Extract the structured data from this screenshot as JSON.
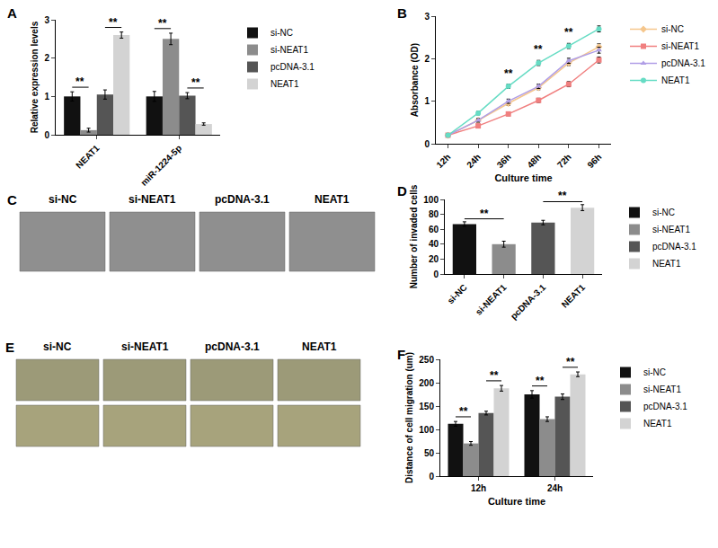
{
  "chart_data": [
    {
      "type": "bar",
      "panel_label": "A",
      "y_label": "Relative expression levels",
      "categories": [
        "NEAT1",
        "miR-1224-5p"
      ],
      "series": [
        {
          "name": "si-NC",
          "color": "#111111",
          "values": [
            1.0,
            1.0
          ],
          "errors": [
            0.12,
            0.13
          ]
        },
        {
          "name": "si-NEAT1",
          "color": "#8c8c8c",
          "values": [
            0.12,
            2.5
          ],
          "errors": [
            0.05,
            0.15
          ]
        },
        {
          "name": "pcDNA-3.1",
          "color": "#555555",
          "values": [
            1.05,
            1.02
          ],
          "errors": [
            0.12,
            0.08
          ]
        },
        {
          "name": "NEAT1",
          "color": "#d3d3d3",
          "values": [
            2.6,
            0.28
          ],
          "errors": [
            0.08,
            0.03
          ]
        }
      ],
      "ylim": [
        0,
        3
      ],
      "yticks": [
        0,
        1,
        2,
        3
      ],
      "grid": false,
      "legend": "right",
      "annotations": [
        {
          "text": "**",
          "category": "NEAT1",
          "between": [
            "si-NC",
            "si-NEAT1"
          ]
        },
        {
          "text": "**",
          "category": "NEAT1",
          "between": [
            "pcDNA-3.1",
            "NEAT1"
          ]
        },
        {
          "text": "**",
          "category": "miR-1224-5p",
          "between": [
            "si-NC",
            "si-NEAT1"
          ]
        },
        {
          "text": "**",
          "category": "miR-1224-5p",
          "between": [
            "pcDNA-3.1",
            "NEAT1"
          ]
        }
      ]
    },
    {
      "type": "line",
      "panel_label": "B",
      "x_label": "Culture time",
      "y_label": "Absorbance (OD)",
      "categories": [
        "12h",
        "24h",
        "36h",
        "48h",
        "72h",
        "96h"
      ],
      "series": [
        {
          "name": "si-NC",
          "color": "#f5c68c",
          "marker": "diamond",
          "values": [
            0.2,
            0.55,
            0.95,
            1.32,
            1.9,
            2.28
          ],
          "errors": [
            0.03,
            0.04,
            0.05,
            0.05,
            0.06,
            0.07
          ]
        },
        {
          "name": "si-NEAT1",
          "color": "#f07f7f",
          "marker": "square",
          "values": [
            0.2,
            0.42,
            0.7,
            1.02,
            1.4,
            1.97
          ],
          "errors": [
            0.03,
            0.04,
            0.04,
            0.05,
            0.06,
            0.07
          ]
        },
        {
          "name": "pcDNA-3.1",
          "color": "#b09ee6",
          "marker": "triangle-up",
          "values": [
            0.2,
            0.55,
            1.0,
            1.35,
            1.95,
            2.2
          ],
          "errors": [
            0.03,
            0.04,
            0.05,
            0.05,
            0.06,
            0.07
          ]
        },
        {
          "name": "NEAT1",
          "color": "#66dcc4",
          "marker": "circle",
          "values": [
            0.2,
            0.72,
            1.35,
            1.9,
            2.3,
            2.7
          ],
          "errors": [
            0.03,
            0.04,
            0.05,
            0.06,
            0.06,
            0.07
          ]
        }
      ],
      "ylim": [
        0,
        3
      ],
      "yticks": [
        0,
        1,
        2,
        3
      ],
      "grid": false,
      "legend": "right",
      "annotations": [
        {
          "text": "**",
          "category": "36h"
        },
        {
          "text": "**",
          "category": "48h"
        },
        {
          "text": "**",
          "category": "72h"
        }
      ]
    },
    {
      "type": "bar",
      "panel_label": "D",
      "y_label": "Number of invaded cells",
      "categories": [
        "si-NC",
        "si-NEAT1",
        "pcDNA-3.1",
        "NEAT1"
      ],
      "values": [
        67,
        40,
        69,
        89
      ],
      "errors": [
        3,
        4,
        3,
        4
      ],
      "colors": [
        "#111111",
        "#8c8c8c",
        "#555555",
        "#d3d3d3"
      ],
      "ylim": [
        0,
        100
      ],
      "yticks": [
        0,
        20,
        40,
        60,
        80,
        100
      ],
      "grid": false,
      "legend": "right",
      "annotations": [
        {
          "text": "**",
          "between": [
            "si-NC",
            "si-NEAT1"
          ]
        },
        {
          "text": "**",
          "between": [
            "pcDNA-3.1",
            "NEAT1"
          ]
        }
      ]
    },
    {
      "type": "bar",
      "panel_label": "F",
      "x_label": "Culture time",
      "y_label": "Distance of cell migration (um)",
      "categories": [
        "12h",
        "24h"
      ],
      "series": [
        {
          "name": "si-NC",
          "color": "#111111",
          "values": [
            112,
            175
          ],
          "errors": [
            5,
            8
          ]
        },
        {
          "name": "si-NEAT1",
          "color": "#8c8c8c",
          "values": [
            70,
            122
          ],
          "errors": [
            4,
            5
          ]
        },
        {
          "name": "pcDNA-3.1",
          "color": "#555555",
          "values": [
            135,
            170
          ],
          "errors": [
            4,
            6
          ]
        },
        {
          "name": "NEAT1",
          "color": "#d3d3d3",
          "values": [
            188,
            218
          ],
          "errors": [
            6,
            5
          ]
        }
      ],
      "ylim": [
        0,
        250
      ],
      "yticks": [
        0,
        50,
        100,
        150,
        200,
        250
      ],
      "grid": false,
      "legend": "right",
      "annotations": [
        {
          "text": "**",
          "category": "12h",
          "between": [
            "si-NC",
            "si-NEAT1"
          ]
        },
        {
          "text": "**",
          "category": "12h",
          "between": [
            "pcDNA-3.1",
            "NEAT1"
          ]
        },
        {
          "text": "**",
          "category": "24h",
          "between": [
            "si-NC",
            "si-NEAT1"
          ]
        },
        {
          "text": "**",
          "category": "24h",
          "between": [
            "pcDNA-3.1",
            "NEAT1"
          ]
        }
      ]
    }
  ],
  "image_panels": [
    {
      "panel_label": "C",
      "captions": [
        "si-NC",
        "si-NEAT1",
        "pcDNA-3.1",
        "NEAT1"
      ]
    },
    {
      "panel_label": "E",
      "captions": [
        "si-NC",
        "si-NEAT1",
        "pcDNA-3.1",
        "NEAT1"
      ]
    }
  ]
}
